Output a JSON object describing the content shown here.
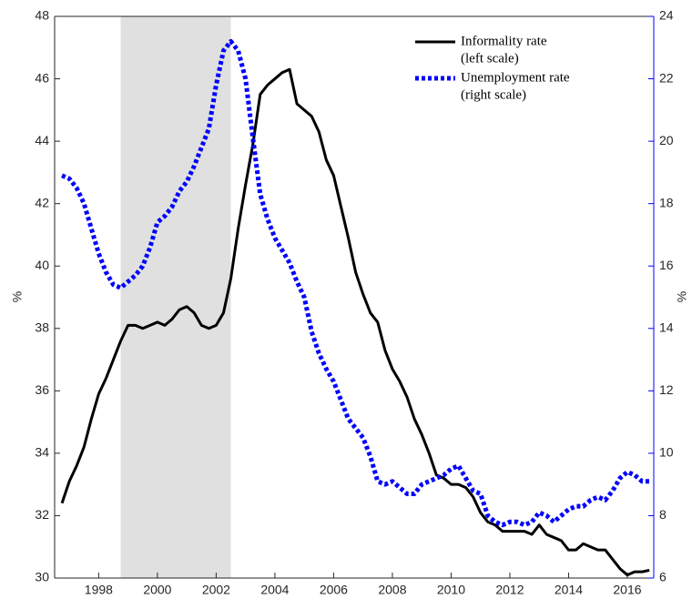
{
  "chart_data": {
    "type": "line",
    "y_label": "%",
    "y2_label": "%",
    "xlim": [
      1996.5,
      2016.9
    ],
    "xticks": [
      1998,
      2000,
      2002,
      2004,
      2006,
      2008,
      2010,
      2012,
      2014,
      2016
    ],
    "ylim": [
      30,
      48
    ],
    "yticks": [
      30,
      32,
      34,
      36,
      38,
      40,
      42,
      44,
      46,
      48
    ],
    "y2lim": [
      6,
      24
    ],
    "y2ticks": [
      6,
      8,
      10,
      12,
      14,
      16,
      18,
      20,
      22,
      24
    ],
    "y2_color": "#0000ff",
    "shaded_region": [
      1998.75,
      2002.5
    ],
    "shade_color": "#e0e0e0",
    "x": [
      1996.75,
      1997,
      1997.25,
      1997.5,
      1997.75,
      1998,
      1998.25,
      1998.5,
      1998.75,
      1999,
      1999.25,
      1999.5,
      1999.75,
      2000,
      2000.25,
      2000.5,
      2000.75,
      2001,
      2001.25,
      2001.5,
      2001.75,
      2002,
      2002.25,
      2002.5,
      2002.75,
      2003,
      2003.25,
      2003.5,
      2003.75,
      2004,
      2004.25,
      2004.5,
      2004.75,
      2005,
      2005.25,
      2005.5,
      2005.75,
      2006,
      2006.25,
      2006.5,
      2006.75,
      2007,
      2007.25,
      2007.5,
      2007.75,
      2008,
      2008.25,
      2008.5,
      2008.75,
      2009,
      2009.25,
      2009.5,
      2009.75,
      2010,
      2010.25,
      2010.5,
      2010.75,
      2011,
      2011.25,
      2011.5,
      2011.75,
      2012,
      2012.25,
      2012.5,
      2012.75,
      2013,
      2013.25,
      2013.5,
      2013.75,
      2014,
      2014.25,
      2014.5,
      2014.75,
      2015,
      2015.25,
      2015.5,
      2015.75,
      2016,
      2016.25,
      2016.5,
      2016.75
    ],
    "series": [
      {
        "name": "Informality rate",
        "scale_label": "(left scale)",
        "color": "#000000",
        "dash": false,
        "values": [
          32.4,
          33.1,
          33.6,
          34.2,
          35.1,
          35.9,
          36.4,
          37.0,
          37.6,
          38.1,
          38.1,
          38.0,
          38.1,
          38.2,
          38.1,
          38.3,
          38.6,
          38.7,
          38.5,
          38.1,
          38.0,
          38.1,
          38.5,
          39.6,
          41.2,
          42.6,
          43.9,
          45.5,
          45.8,
          46.0,
          46.2,
          46.3,
          45.2,
          45.0,
          44.8,
          44.3,
          43.4,
          42.9,
          41.9,
          40.9,
          39.8,
          39.1,
          38.5,
          38.2,
          37.3,
          36.7,
          36.3,
          35.8,
          35.1,
          34.6,
          34.0,
          33.3,
          33.2,
          33.0,
          33.0,
          32.9,
          32.6,
          32.1,
          31.8,
          31.7,
          31.5,
          31.5,
          31.5,
          31.5,
          31.4,
          31.7,
          31.4,
          31.3,
          31.2,
          30.9,
          30.9,
          31.1,
          31.0,
          30.9,
          30.9,
          30.6,
          30.3,
          30.1,
          30.2,
          30.2,
          30.25
        ]
      },
      {
        "name": "Unemployment rate",
        "scale_label": "(right scale)",
        "color": "#0000ff",
        "dash": true,
        "axis": "y2",
        "values": [
          18.9,
          18.8,
          18.5,
          18.0,
          17.2,
          16.4,
          15.8,
          15.4,
          15.3,
          15.5,
          15.7,
          16.0,
          16.6,
          17.4,
          17.6,
          17.9,
          18.4,
          18.7,
          19.2,
          19.8,
          20.4,
          21.8,
          22.9,
          23.2,
          22.9,
          22.0,
          20.1,
          18.3,
          17.5,
          16.9,
          16.5,
          16.1,
          15.5,
          15.0,
          13.9,
          13.2,
          12.7,
          12.3,
          11.7,
          11.1,
          10.8,
          10.5,
          9.9,
          9.1,
          9.0,
          9.1,
          8.9,
          8.7,
          8.7,
          9.0,
          9.1,
          9.2,
          9.3,
          9.5,
          9.6,
          9.2,
          8.8,
          8.7,
          8.0,
          7.8,
          7.7,
          7.8,
          7.8,
          7.7,
          7.8,
          8.1,
          8.0,
          7.8,
          8.0,
          8.2,
          8.3,
          8.3,
          8.5,
          8.6,
          8.5,
          8.8,
          9.2,
          9.4,
          9.3,
          9.1,
          9.1
        ]
      }
    ]
  }
}
